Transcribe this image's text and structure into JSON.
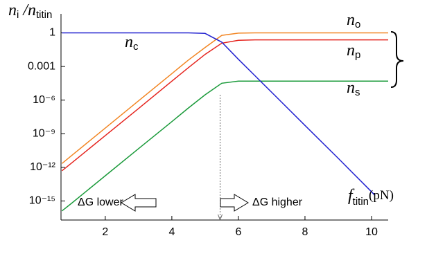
{
  "chart_data": {
    "type": "line",
    "y_label": {
      "symbol": "n",
      "subscript": "i",
      "separator": "/",
      "symbol2": "n",
      "subscript2": "titin"
    },
    "x_label": {
      "symbol": "f",
      "subscript": "titin",
      "unit": "(pN)"
    },
    "x": [
      0.7,
      1,
      2,
      3,
      4,
      4.5,
      5,
      5.5,
      6,
      6.5,
      7,
      8,
      9,
      10,
      10.1,
      10.5
    ],
    "series": [
      {
        "name": "n",
        "subscript": "o",
        "color": "#f28522",
        "values": [
          2.2e-12,
          1.2e-11,
          3.2e-09,
          8.7e-07,
          0.00023,
          0.0038,
          0.05,
          0.6,
          0.95,
          1,
          1,
          1,
          1,
          1,
          1,
          1
        ]
      },
      {
        "name": "n",
        "subscript": "p",
        "color": "#e5231d",
        "values": [
          5e-13,
          2.6e-12,
          6.9e-10,
          1.8e-07,
          4.9e-05,
          0.0008,
          0.012,
          0.12,
          0.22,
          0.24,
          0.24,
          0.24,
          0.24,
          0.24,
          0.24,
          0.24
        ]
      },
      {
        "name": "n",
        "subscript": "s",
        "color": "#1a9a3a",
        "values": [
          1.3e-16,
          6.6e-16,
          1.8e-13,
          4.7e-11,
          1.2e-08,
          2e-07,
          3e-06,
          3.2e-05,
          5e-05,
          5e-05,
          5e-05,
          5e-05,
          5e-05,
          5e-05,
          5e-05,
          5e-05
        ]
      },
      {
        "name": "n",
        "subscript": "c",
        "color": "#2020d0",
        "values": [
          1,
          1,
          1,
          1,
          1,
          1,
          0.9,
          0.15,
          0.0044,
          0.00015,
          5e-06,
          5.5e-09,
          6.3e-12,
          6.6e-15,
          3.2e-15,
          null
        ]
      }
    ],
    "xlim": [
      0.67,
      10.5
    ],
    "xticks": [
      2,
      4,
      6,
      8,
      10
    ],
    "ylim": [
      2e-17,
      50
    ],
    "log_y": true,
    "yticks": [
      1,
      0.001,
      {
        "value": 1e-06,
        "label": "10⁻⁶"
      },
      {
        "value": 1e-09,
        "label": "10⁻⁹"
      },
      {
        "value": 1e-12,
        "label": "10⁻¹²"
      },
      {
        "value": 1e-15,
        "label": "10⁻¹⁵"
      }
    ],
    "threshold_x": 5.45,
    "annotations": [
      "ΔG lower",
      "ΔG higher"
    ]
  }
}
